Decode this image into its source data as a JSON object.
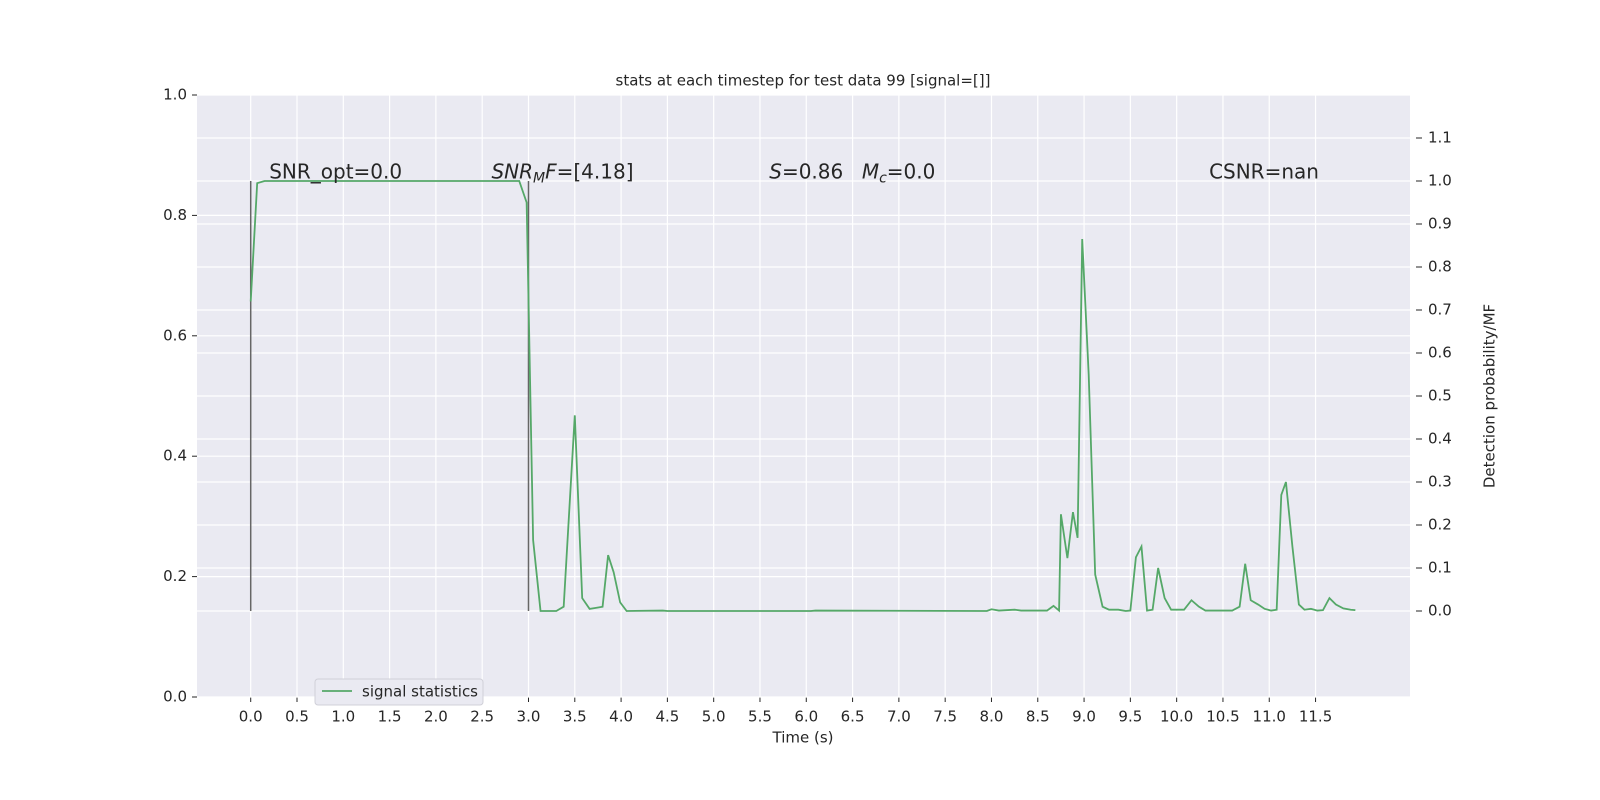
{
  "chart_data": {
    "type": "line",
    "title": "stats at each timestep for test data 99 [signal=[]]",
    "x_label": "Time (s)",
    "y2_label": "Detection probability/MF",
    "xlim": [
      -0.58,
      12.52
    ],
    "ylim": [
      0,
      1
    ],
    "y2lim": [
      -0.2,
      1.2
    ],
    "grid": true,
    "legend": "lower left",
    "xticks": [
      {
        "value": 0,
        "label": "0.0"
      },
      {
        "value": 0.5,
        "label": "0.5"
      },
      {
        "value": 1,
        "label": "1.0"
      },
      {
        "value": 1.5,
        "label": "1.5"
      },
      {
        "value": 2,
        "label": "2.0"
      },
      {
        "value": 2.5,
        "label": "2.5"
      },
      {
        "value": 3,
        "label": "3.0"
      },
      {
        "value": 3.5,
        "label": "3.5"
      },
      {
        "value": 4,
        "label": "4.0"
      },
      {
        "value": 4.5,
        "label": "4.5"
      },
      {
        "value": 5,
        "label": "5.0"
      },
      {
        "value": 5.5,
        "label": "5.5"
      },
      {
        "value": 6,
        "label": "6.0"
      },
      {
        "value": 6.5,
        "label": "6.5"
      },
      {
        "value": 7,
        "label": "7.0"
      },
      {
        "value": 7.5,
        "label": "7.5"
      },
      {
        "value": 8,
        "label": "8.0"
      },
      {
        "value": 8.5,
        "label": "8.5"
      },
      {
        "value": 9,
        "label": "9.0"
      },
      {
        "value": 9.5,
        "label": "9.5"
      },
      {
        "value": 10,
        "label": "10.0"
      },
      {
        "value": 10.5,
        "label": "10.5"
      },
      {
        "value": 11,
        "label": "11.0"
      },
      {
        "value": 11.5,
        "label": "11.5"
      }
    ],
    "yticks": [
      {
        "value": 0,
        "label": "0.0"
      },
      {
        "value": 0.2,
        "label": "0.2"
      },
      {
        "value": 0.4,
        "label": "0.4"
      },
      {
        "value": 0.6,
        "label": "0.6"
      },
      {
        "value": 0.8,
        "label": "0.8"
      },
      {
        "value": 1,
        "label": "1.0"
      }
    ],
    "y2ticks": [
      {
        "value": 0,
        "label": "0.0"
      },
      {
        "value": 0.1,
        "label": "0.1"
      },
      {
        "value": 0.2,
        "label": "0.2"
      },
      {
        "value": 0.3,
        "label": "0.3"
      },
      {
        "value": 0.4,
        "label": "0.4"
      },
      {
        "value": 0.5,
        "label": "0.5"
      },
      {
        "value": 0.6,
        "label": "0.6"
      },
      {
        "value": 0.7,
        "label": "0.7"
      },
      {
        "value": 0.8,
        "label": "0.8"
      },
      {
        "value": 0.9,
        "label": "0.9"
      },
      {
        "value": 1,
        "label": "1.0"
      },
      {
        "value": 1.1,
        "label": "1.1"
      }
    ],
    "vlines": {
      "x": [
        0,
        3
      ],
      "ymin": 0,
      "ymax": 1,
      "color": "#666666",
      "axis": "y2"
    },
    "annotations": [
      [
        {
          "text": "SNR_opt=0.0"
        }
      ],
      [
        {
          "text": "SNR",
          "italic": true
        },
        {
          "text": "M",
          "italic": true,
          "sub": true
        },
        {
          "text": "F",
          "italic": true
        },
        {
          "text": "=[4.18]"
        }
      ],
      [
        {
          "text": "S",
          "italic": true
        },
        {
          "text": "=0.86"
        }
      ],
      [
        {
          "text": "M",
          "italic": true
        },
        {
          "text": "c",
          "italic": true,
          "sub": true
        },
        {
          "text": "=0.0"
        }
      ],
      [
        {
          "text": "CSNR=nan"
        }
      ]
    ],
    "series": [
      {
        "name": "signal statistics",
        "color": "#55a868",
        "axis": "y2",
        "x": [
          0,
          0.07,
          0.15,
          2.9,
          2.98,
          3.05,
          3.13,
          3.3,
          3.38,
          3.5,
          3.58,
          3.66,
          3.72,
          3.8,
          3.86,
          3.92,
          3.99,
          4.06,
          4.45,
          4.5,
          6.05,
          6.1,
          7.95,
          8.0,
          8.08,
          8.25,
          8.32,
          8.6,
          8.67,
          8.73,
          8.75,
          8.82,
          8.88,
          8.93,
          8.98,
          9.05,
          9.12,
          9.2,
          9.27,
          9.37,
          9.45,
          9.5,
          9.56,
          9.62,
          9.68,
          9.74,
          9.8,
          9.87,
          9.94,
          10.08,
          10.16,
          10.24,
          10.31,
          10.6,
          10.68,
          10.74,
          10.8,
          10.88,
          10.95,
          11.02,
          11.08,
          11.13,
          11.18,
          11.25,
          11.32,
          11.38,
          11.45,
          11.52,
          11.58,
          11.65,
          11.72,
          11.8,
          11.88,
          11.93
        ],
        "values": [
          0.72,
          0.995,
          1.0,
          1.0,
          0.95,
          0.165,
          0.0,
          0.0,
          0.01,
          0.455,
          0.03,
          0.005,
          0.007,
          0.01,
          0.13,
          0.09,
          0.02,
          0.0,
          0.001,
          0.0,
          0.0,
          0.001,
          0.0,
          0.004,
          0.001,
          0.003,
          0.001,
          0.001,
          0.012,
          0.001,
          0.225,
          0.123,
          0.23,
          0.17,
          0.865,
          0.55,
          0.085,
          0.01,
          0.003,
          0.003,
          0.0,
          0.001,
          0.125,
          0.15,
          0.001,
          0.003,
          0.1,
          0.03,
          0.003,
          0.003,
          0.025,
          0.01,
          0.001,
          0.001,
          0.01,
          0.11,
          0.025,
          0.015,
          0.005,
          0.001,
          0.003,
          0.27,
          0.3,
          0.15,
          0.015,
          0.003,
          0.005,
          0.001,
          0.002,
          0.03,
          0.015,
          0.006,
          0.003,
          0.002
        ]
      }
    ]
  }
}
